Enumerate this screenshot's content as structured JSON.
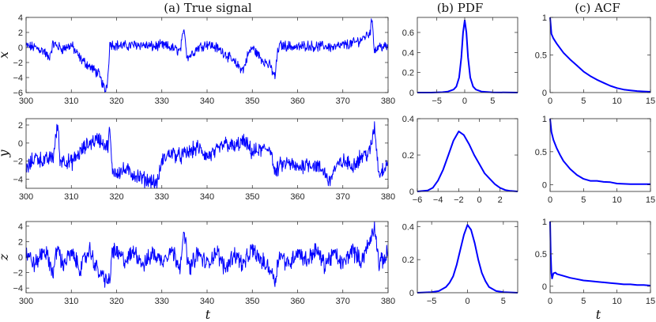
{
  "figure": {
    "column_titles": [
      "(a) True signal",
      "(b) PDF",
      "(c) ACF"
    ],
    "bottom_xlabel": "t",
    "color": "#0000ff"
  },
  "chart_data": [
    {
      "id": "signal-x",
      "type": "line",
      "title": "(a) True signal",
      "ylabel": "x",
      "xlabel": "",
      "xlim": [
        300,
        380
      ],
      "ylim": [
        -6,
        4
      ],
      "xticks": [
        300,
        310,
        320,
        330,
        340,
        350,
        360,
        370,
        380
      ],
      "yticks": [
        -6,
        -4,
        -2,
        0,
        2,
        4
      ],
      "series": [
        {
          "x": [
            300,
            302,
            304,
            305,
            306,
            308,
            310,
            312,
            314,
            316,
            317,
            317.5,
            318,
            318.5,
            320,
            322,
            325,
            328,
            330,
            332,
            334,
            335,
            335.5,
            336,
            338,
            340,
            342,
            344,
            346,
            348,
            349,
            350,
            352,
            354,
            355,
            355.5,
            356,
            358,
            360,
            362,
            364,
            366,
            368,
            370,
            372,
            374,
            375,
            376,
            376.5,
            377,
            378,
            380
          ],
          "y": [
            0.2,
            0,
            -0.5,
            -1.5,
            0.5,
            -0.2,
            0.3,
            -1.5,
            -2.5,
            -3.5,
            -5,
            -5.8,
            -4.5,
            0.5,
            0.3,
            0.2,
            0.4,
            0.1,
            0.3,
            0,
            -0.5,
            2.5,
            -1,
            -1.2,
            0,
            0.5,
            0,
            -0.8,
            -2,
            -3,
            -1,
            0,
            -1.5,
            -2.5,
            -4,
            -1,
            0.3,
            0.2,
            0,
            0.3,
            0.1,
            0.2,
            0,
            0.3,
            0.5,
            1,
            1.5,
            2,
            3.8,
            -0.5,
            0.2,
            0
          ]
        }
      ]
    },
    {
      "id": "signal-y",
      "type": "line",
      "title": "",
      "ylabel": "y",
      "xlabel": "",
      "xlim": [
        300,
        380
      ],
      "ylim": [
        -5,
        2.7
      ],
      "xticks": [
        300,
        310,
        320,
        330,
        340,
        350,
        360,
        370,
        380
      ],
      "yticks": [
        -4,
        -2,
        0,
        2
      ],
      "series": [
        {
          "x": [
            300,
            302,
            304,
            306,
            307,
            307.5,
            308,
            310,
            312,
            314,
            316,
            318,
            318.5,
            319,
            320,
            322,
            324,
            326,
            328,
            329,
            330,
            332,
            334,
            336,
            338,
            340,
            342,
            344,
            346,
            348,
            350,
            352,
            354,
            355,
            356,
            358,
            360,
            362,
            364,
            366,
            367,
            368,
            370,
            372,
            374,
            376,
            377,
            378,
            380
          ],
          "y": [
            -3,
            -1.5,
            -2,
            -1.5,
            2.2,
            -2,
            -1.8,
            -2.2,
            -1,
            0,
            0.5,
            -0.5,
            1.5,
            -3,
            -3.2,
            -3,
            -3.5,
            -4,
            -4.2,
            -4.6,
            -2,
            -1,
            -1.5,
            -1,
            -0.5,
            -1.5,
            -1,
            0,
            -0.5,
            0.2,
            -1,
            -0.8,
            -0.5,
            -3.5,
            -2.5,
            -2.2,
            -2.8,
            -2.2,
            -2.5,
            -3.2,
            -4.3,
            -3,
            -2,
            -2.5,
            -1.5,
            -1,
            1.8,
            -3.5,
            -2
          ]
        }
      ]
    },
    {
      "id": "signal-z",
      "type": "line",
      "title": "",
      "ylabel": "z",
      "xlabel": "t",
      "xlim": [
        300,
        380
      ],
      "ylim": [
        -4.6,
        4.6
      ],
      "xticks": [
        300,
        310,
        320,
        330,
        340,
        350,
        360,
        370,
        380
      ],
      "yticks": [
        -4,
        -2,
        0,
        2,
        4
      ],
      "series": [
        {
          "x": [
            300,
            302,
            304,
            306,
            307,
            308,
            310,
            312,
            314,
            316,
            318,
            318.5,
            319,
            320,
            322,
            324,
            326,
            328,
            330,
            332,
            334,
            335,
            336,
            338,
            340,
            342,
            344,
            346,
            348,
            350,
            352,
            354,
            355,
            356,
            358,
            360,
            362,
            364,
            366,
            368,
            370,
            372,
            374,
            376,
            377,
            378,
            380
          ],
          "y": [
            0.5,
            -1,
            1,
            -2,
            1.5,
            -1,
            0.5,
            -1.5,
            1,
            -2,
            -3,
            -3.5,
            1,
            0.5,
            -0.5,
            0.8,
            -1,
            0.5,
            -0.5,
            1,
            -1,
            3,
            -1.5,
            0.5,
            -1,
            0.8,
            -1.5,
            0.5,
            -1,
            1,
            -0.5,
            -1.5,
            -3,
            0.5,
            -1,
            0.8,
            -0.5,
            1,
            -1,
            0.5,
            -1,
            1,
            -0.5,
            2,
            4.3,
            -1,
            0.5
          ]
        }
      ]
    },
    {
      "id": "pdf-x",
      "type": "line",
      "title": "(b) PDF",
      "xlabel": "",
      "ylabel": "",
      "xlim": [
        -8.5,
        9.5
      ],
      "ylim": [
        0,
        0.75
      ],
      "xticks": [
        -5,
        0,
        5
      ],
      "yticks": [
        0,
        0.2,
        0.4,
        0.6
      ],
      "series": [
        {
          "x": [
            -8.5,
            -6,
            -4,
            -3,
            -2,
            -1.5,
            -1,
            -0.6,
            -0.3,
            0,
            0.3,
            0.6,
            1,
            1.5,
            2,
            3,
            5,
            9.5
          ],
          "y": [
            0,
            0,
            0.004,
            0.01,
            0.03,
            0.06,
            0.15,
            0.35,
            0.6,
            0.72,
            0.6,
            0.35,
            0.15,
            0.06,
            0.03,
            0.01,
            0.002,
            0
          ]
        }
      ]
    },
    {
      "id": "pdf-y",
      "type": "line",
      "title": "",
      "xlabel": "",
      "ylabel": "",
      "xlim": [
        -6,
        3.7
      ],
      "ylim": [
        0,
        0.4
      ],
      "xticks": [
        -6,
        -4,
        -2,
        0,
        2
      ],
      "yticks": [
        0,
        0.2,
        0.4
      ],
      "series": [
        {
          "x": [
            -6,
            -5,
            -4.5,
            -4,
            -3.5,
            -3,
            -2.5,
            -2,
            -1.5,
            -1,
            -0.5,
            0,
            0.5,
            1,
            1.5,
            2,
            2.5,
            3,
            3.7
          ],
          "y": [
            0,
            0.005,
            0.02,
            0.06,
            0.12,
            0.2,
            0.28,
            0.33,
            0.31,
            0.26,
            0.2,
            0.15,
            0.1,
            0.07,
            0.04,
            0.02,
            0.008,
            0.003,
            0
          ]
        }
      ]
    },
    {
      "id": "pdf-z",
      "type": "line",
      "title": "",
      "xlabel": "",
      "ylabel": "",
      "xlim": [
        -7,
        7
      ],
      "ylim": [
        0,
        0.43
      ],
      "xticks": [
        -5,
        0,
        5
      ],
      "yticks": [
        0,
        0.2,
        0.4
      ],
      "series": [
        {
          "x": [
            -7,
            -5,
            -4,
            -3,
            -2.5,
            -2,
            -1.5,
            -1,
            -0.5,
            0,
            0.5,
            1,
            1.5,
            2,
            2.5,
            3,
            4,
            5,
            7
          ],
          "y": [
            0,
            0.004,
            0.01,
            0.035,
            0.06,
            0.1,
            0.17,
            0.26,
            0.35,
            0.41,
            0.38,
            0.3,
            0.2,
            0.12,
            0.07,
            0.035,
            0.01,
            0.004,
            0
          ]
        }
      ]
    },
    {
      "id": "acf-x",
      "type": "line",
      "title": "(c) ACF",
      "xlabel": "",
      "ylabel": "",
      "xlim": [
        0,
        15
      ],
      "ylim": [
        0,
        1
      ],
      "xticks": [
        0,
        5,
        10,
        15
      ],
      "yticks": [
        0,
        0.5,
        1
      ],
      "series": [
        {
          "x": [
            0,
            0.2,
            0.5,
            1,
            2,
            3,
            4,
            5,
            6,
            7,
            8,
            9,
            10,
            11,
            12,
            13,
            14,
            15
          ],
          "y": [
            1,
            0.78,
            0.72,
            0.65,
            0.53,
            0.44,
            0.36,
            0.28,
            0.22,
            0.17,
            0.13,
            0.09,
            0.06,
            0.04,
            0.03,
            0.02,
            0.015,
            0.01
          ]
        }
      ]
    },
    {
      "id": "acf-y",
      "type": "line",
      "title": "",
      "xlabel": "",
      "ylabel": "",
      "xlim": [
        0,
        15
      ],
      "ylim": [
        -0.1,
        1
      ],
      "xticks": [
        0,
        5,
        10,
        15
      ],
      "yticks": [
        0,
        0.5,
        1
      ],
      "series": [
        {
          "x": [
            0,
            0.2,
            0.5,
            1,
            1.5,
            2,
            3,
            4,
            5,
            6,
            7,
            8,
            9,
            10,
            11,
            12,
            13,
            14,
            15
          ],
          "y": [
            1,
            0.8,
            0.68,
            0.55,
            0.45,
            0.36,
            0.24,
            0.15,
            0.09,
            0.06,
            0.06,
            0.045,
            0.04,
            0.02,
            0.015,
            0.01,
            0.01,
            0.01,
            0.01
          ]
        }
      ]
    },
    {
      "id": "acf-z",
      "type": "line",
      "title": "",
      "xlabel": "t",
      "ylabel": "",
      "xlim": [
        0,
        15
      ],
      "ylim": [
        -0.1,
        1
      ],
      "xticks": [
        0,
        5,
        10,
        15
      ],
      "yticks": [
        0,
        0.5,
        1
      ],
      "series": [
        {
          "x": [
            0,
            0.1,
            0.2,
            0.3,
            0.5,
            0.8,
            1,
            2,
            3,
            4,
            5,
            6,
            7,
            8,
            9,
            10,
            11,
            12,
            13,
            14,
            15
          ],
          "y": [
            1,
            0.5,
            0.2,
            0.12,
            0.2,
            0.21,
            0.19,
            0.16,
            0.13,
            0.11,
            0.09,
            0.08,
            0.07,
            0.06,
            0.05,
            0.04,
            0.03,
            0.03,
            0.02,
            0.02,
            0.01
          ]
        }
      ]
    }
  ]
}
